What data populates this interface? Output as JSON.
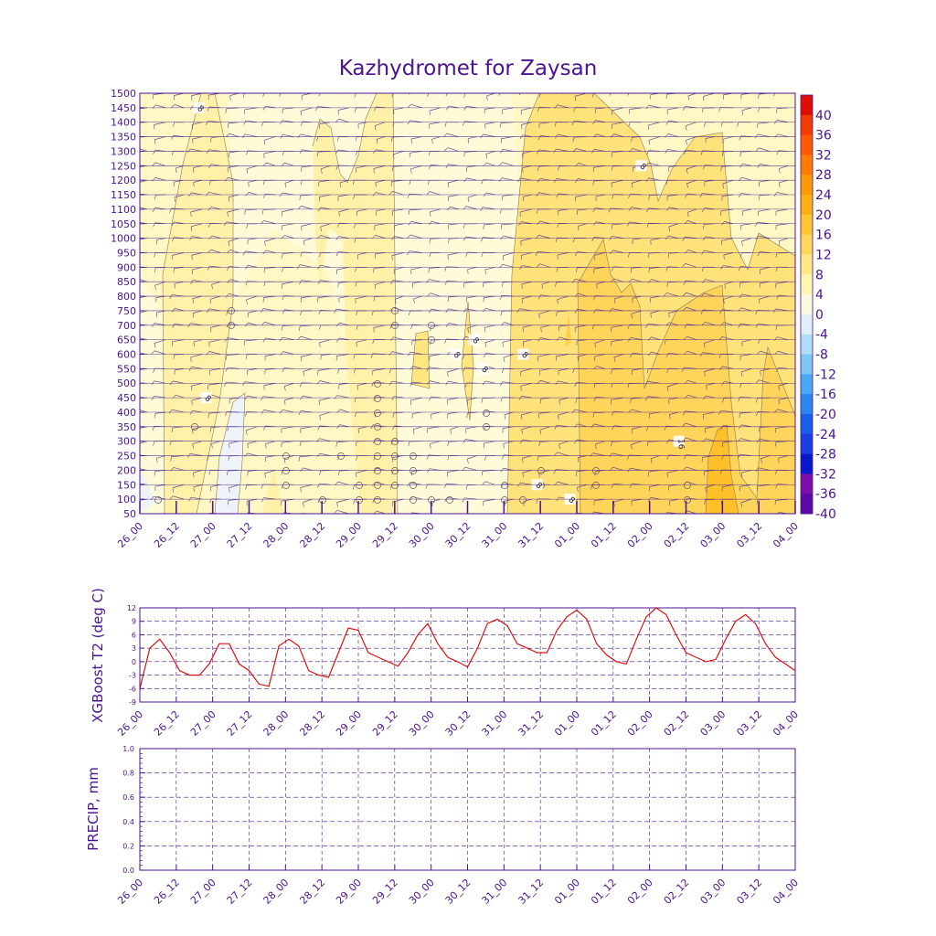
{
  "page": {
    "title": "Kazhydromet for Zaysan"
  },
  "time_labels": [
    "26_00",
    "26_12",
    "27_00",
    "27_12",
    "28_00",
    "28_12",
    "29_00",
    "29_12",
    "30_00",
    "30_12",
    "31_00",
    "31_12",
    "01_00",
    "01_12",
    "02_00",
    "02_12",
    "03_00",
    "03_12",
    "04_00"
  ],
  "colors": {
    "frame": "#4b1390",
    "bar_levels": [
      "#5a0aa0",
      "#7d0ea6",
      "#0a18cc",
      "#1a3fe0",
      "#1a5ee8",
      "#2a86ee",
      "#4aa8f2",
      "#7ec6f6",
      "#b0def8",
      "#dff0fb",
      "#fbfae0",
      "#fff7b0",
      "#ffe985",
      "#ffd85a",
      "#ffc630",
      "#ffb010",
      "#ff9a00",
      "#ff7c00",
      "#ff5a00",
      "#f33a00",
      "#e00e00"
    ]
  },
  "chart_data": [
    {
      "type": "heatmap",
      "title": "Kazhydromet for Zaysan",
      "xlabel": "",
      "ylabel": "",
      "x": [
        "26_00",
        "26_12",
        "27_00",
        "27_12",
        "28_00",
        "28_12",
        "29_00",
        "29_12",
        "30_00",
        "30_12",
        "31_00",
        "31_12",
        "01_00",
        "01_12",
        "02_00",
        "02_12",
        "03_00",
        "03_12",
        "04_00"
      ],
      "y_ticks": [
        50,
        100,
        150,
        200,
        250,
        300,
        350,
        400,
        450,
        500,
        550,
        600,
        650,
        700,
        750,
        800,
        850,
        900,
        950,
        1000,
        1050,
        1100,
        1150,
        1200,
        1250,
        1300,
        1350,
        1400,
        1450,
        1500
      ],
      "ylim": [
        50,
        1500
      ],
      "colorbar": {
        "labels": [
          "40",
          "36",
          "32",
          "28",
          "24",
          "20",
          "16",
          "12",
          "8",
          "4",
          "0",
          "-4",
          "-8",
          "-12",
          "-16",
          "-20",
          "-24",
          "-28",
          "-32",
          "-36",
          "-40"
        ]
      },
      "contour_labels": [
        {
          "text": "8",
          "x": 0.72,
          "y": 1450
        },
        {
          "text": "8",
          "x": 0.81,
          "y": 450
        },
        {
          "text": "8",
          "x": 3.85,
          "y": 600
        },
        {
          "text": "8",
          "x": 4.08,
          "y": 650
        },
        {
          "text": "8",
          "x": 4.19,
          "y": 550
        },
        {
          "text": "8",
          "x": 4.68,
          "y": 600
        },
        {
          "text": "8",
          "x": 4.85,
          "y": 150
        },
        {
          "text": "8",
          "x": 5.25,
          "y": 100
        },
        {
          "text": "8",
          "x": 6.12,
          "y": 1250
        },
        {
          "text": "16",
          "x": 6.58,
          "y": 300
        }
      ]
    },
    {
      "type": "line",
      "title": "",
      "xlabel": "",
      "ylabel": "XGBoost T2 (deg C)",
      "y_ticks": [
        "-9",
        "-6",
        "-3",
        "0",
        "3",
        "6",
        "9",
        "12"
      ],
      "ylim": [
        -9,
        12
      ],
      "grid": true,
      "series": [
        {
          "values": [
            -6,
            3,
            5,
            2,
            -2,
            -3,
            -3,
            -0.5,
            4,
            4,
            -0.5,
            -2,
            -5,
            -5.5,
            3.5,
            5,
            3.5,
            -2,
            -3,
            -3.5,
            2,
            7.5,
            7,
            2,
            1,
            0,
            -1,
            2,
            6,
            8.5,
            4,
            1,
            0,
            -1.2,
            3,
            8.5,
            9.5,
            8,
            4,
            3,
            2,
            2,
            7,
            10,
            11.5,
            9.5,
            4,
            1.5,
            0,
            -0.5,
            5,
            10,
            12,
            10.5,
            6,
            2,
            1,
            0,
            0.5,
            5,
            9,
            10.5,
            8.5,
            4,
            1,
            -0.5,
            -2
          ]
        }
      ]
    },
    {
      "type": "line",
      "title": "",
      "xlabel": "",
      "ylabel": "PRECIP, mm",
      "y_ticks": [
        "0.0",
        "0.2",
        "0.4",
        "0.6",
        "0.8",
        "1.0"
      ],
      "ylim": [
        0,
        1
      ],
      "grid": true,
      "series": []
    }
  ]
}
